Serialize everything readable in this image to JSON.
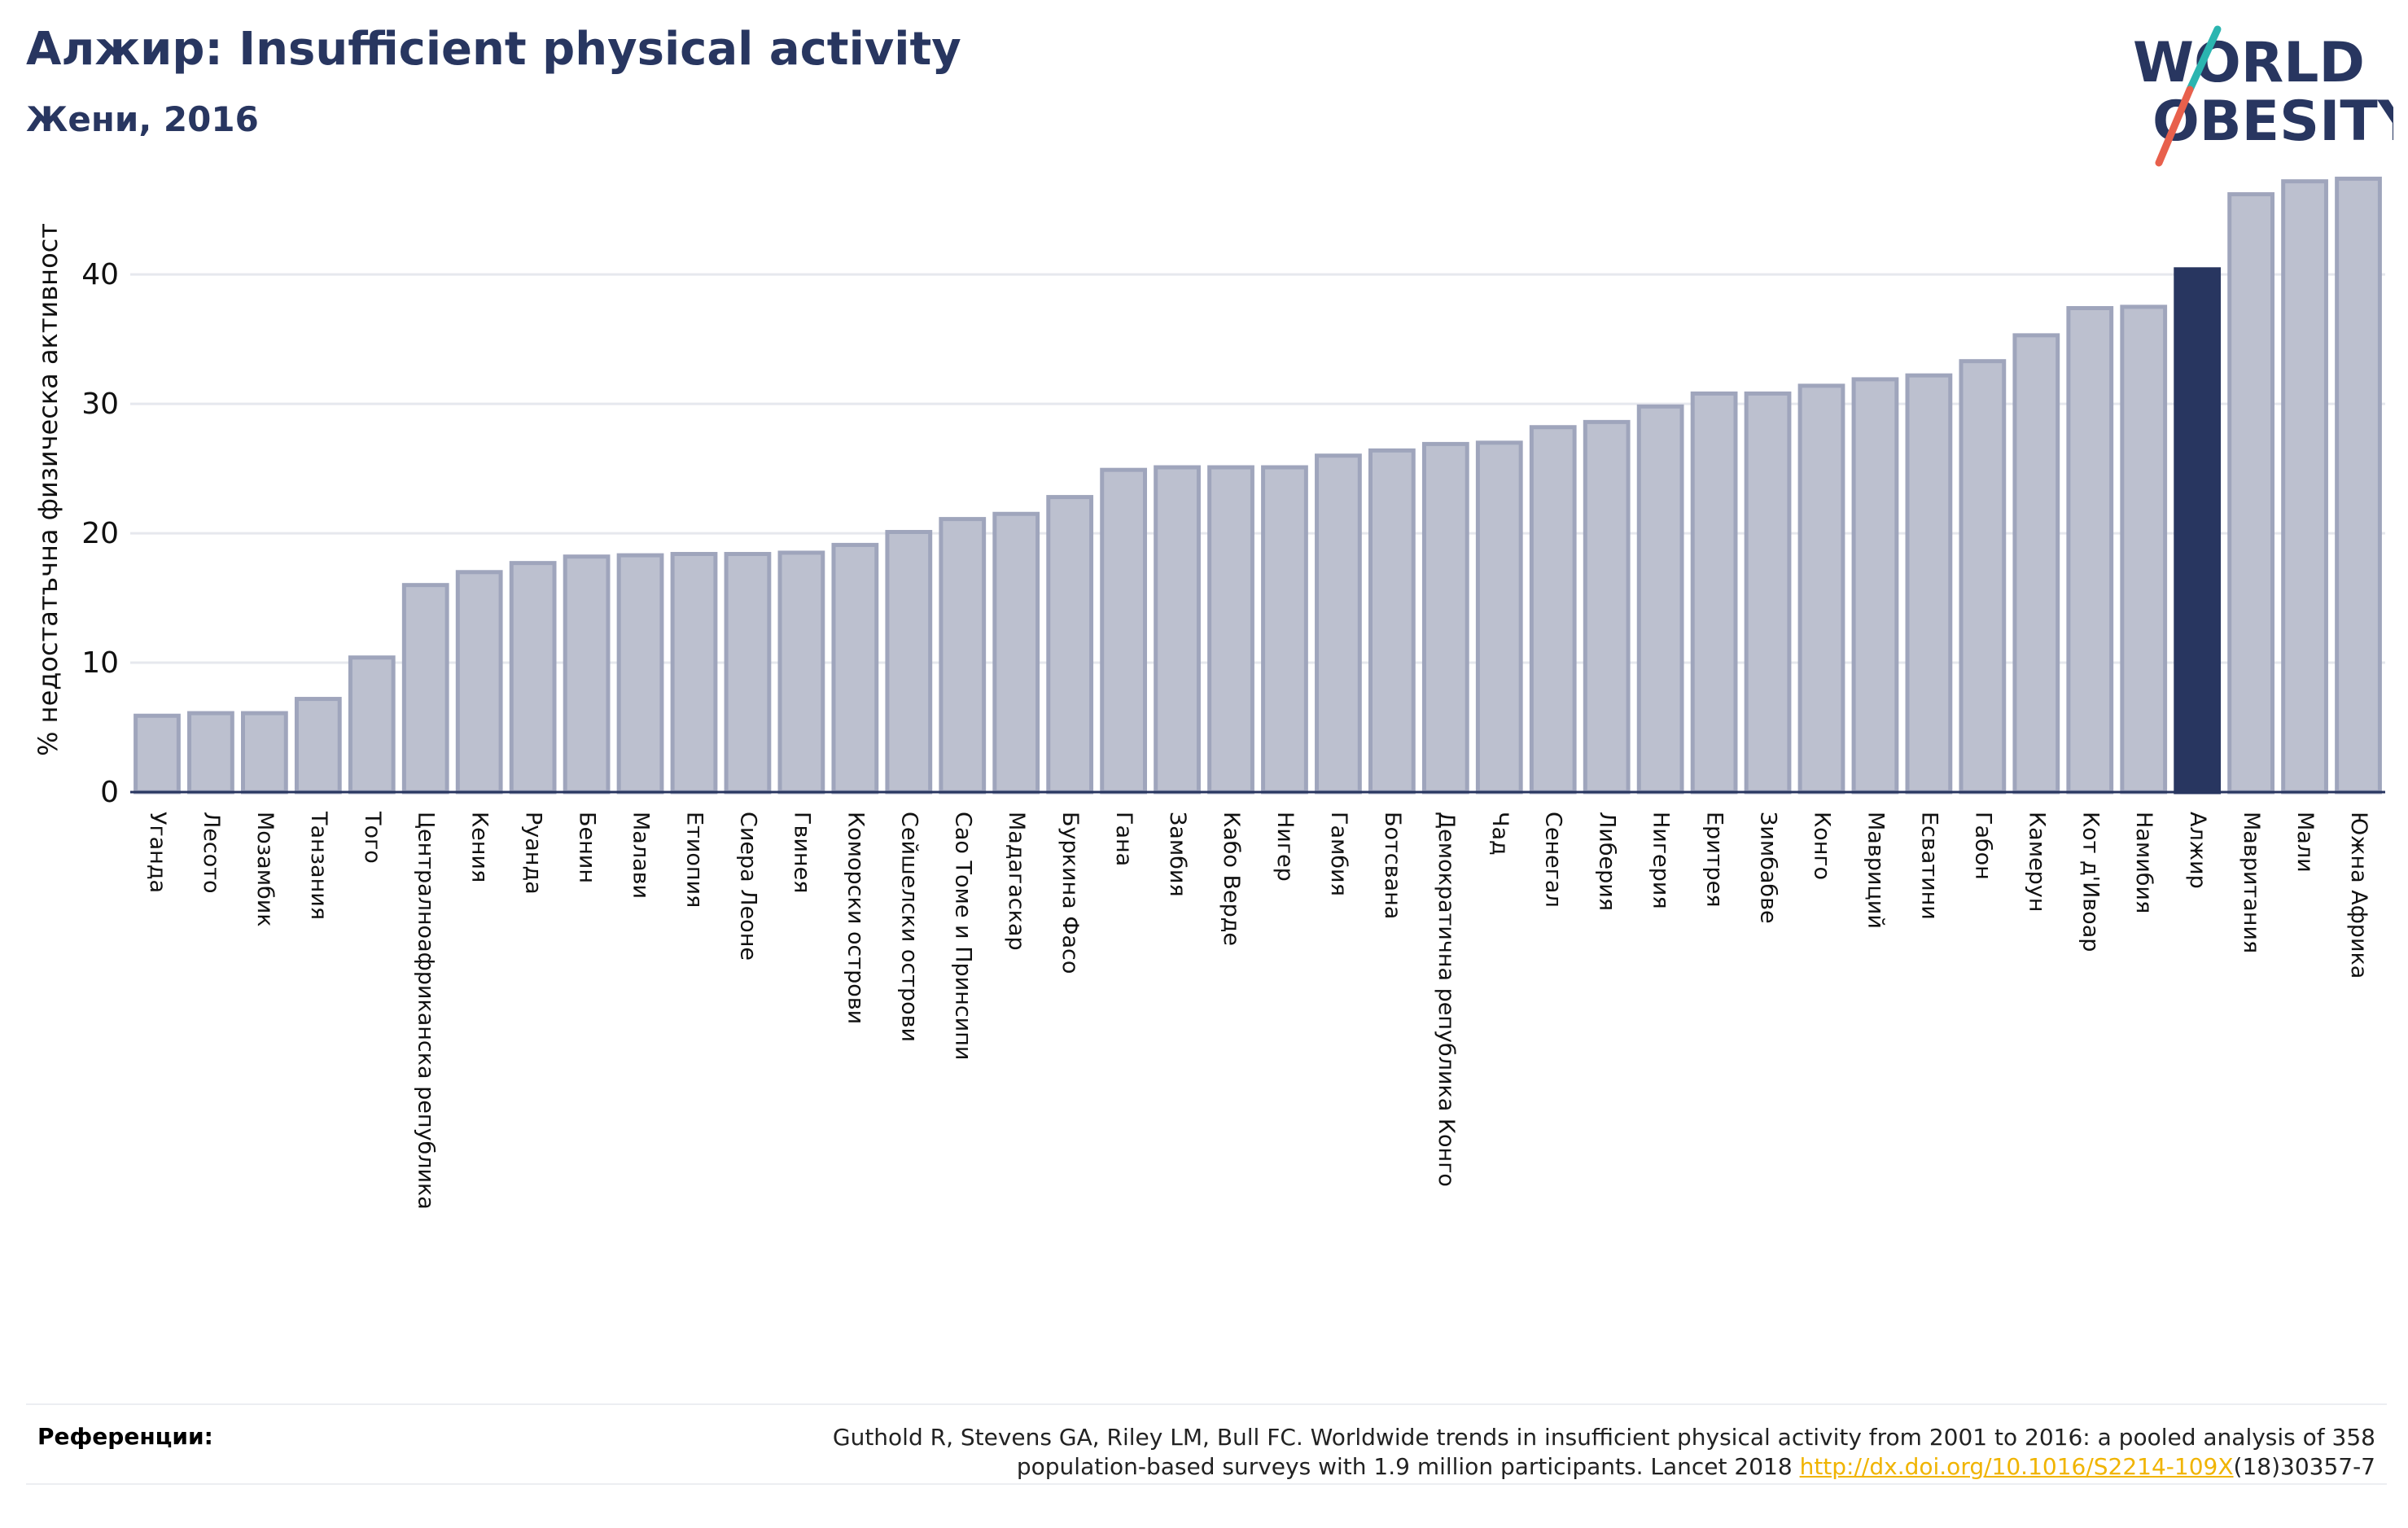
{
  "header": {
    "title": "Алжир: Insufficient physical activity",
    "subtitle": "Жени, 2016"
  },
  "logo": {
    "line1": "WORLD",
    "line2": "OBESITY",
    "color_text": "#283660",
    "color_slash_top": "#2bb5b0",
    "color_slash_bottom": "#e8604c"
  },
  "chart_data": {
    "type": "bar",
    "ylabel": "% недостатъчна физическа активност",
    "ylim": [
      0,
      48
    ],
    "yticks": [
      0,
      10,
      20,
      30,
      40
    ],
    "grid": true,
    "highlight": "Алжир",
    "bar_color": "#bcc0cf",
    "bar_edge_color": "#9fa5bc",
    "highlight_color": "#283660",
    "categories": [
      "Уганда",
      "Лесото",
      "Мозамбик",
      "Танзания",
      "Того",
      "Централноафриканска република",
      "Кения",
      "Руанда",
      "Бенин",
      "Малави",
      "Етиопия",
      "Сиера Леоне",
      "Гвинея",
      "Коморски острови",
      "Сейшелски острови",
      "Сао Томе и Принсипи",
      "Мадагаскар",
      "Буркина Фасо",
      "Гана",
      "Замбия",
      "Кабо Верде",
      "Нигер",
      "Гамбия",
      "Ботсвана",
      "Демократична република Конго",
      "Чад",
      "Сенегал",
      "Либерия",
      "Нигерия",
      "Еритрея",
      "Зимбабве",
      "Конго",
      "Мавриций",
      "Есватини",
      "Габон",
      "Камерун",
      "Кот д'Ивоар",
      "Намибия",
      "Алжир",
      "Мавритания",
      "Мали",
      "Южна Африка"
    ],
    "values": [
      5.9,
      6.1,
      6.1,
      7.2,
      10.4,
      16.0,
      17.0,
      17.7,
      18.2,
      18.3,
      18.4,
      18.4,
      18.5,
      19.1,
      20.1,
      21.1,
      21.5,
      22.8,
      24.9,
      25.1,
      25.1,
      25.1,
      26.0,
      26.4,
      26.9,
      27.0,
      28.2,
      28.6,
      29.8,
      30.8,
      30.8,
      31.4,
      31.9,
      32.2,
      33.3,
      35.3,
      37.4,
      37.5,
      40.4,
      46.2,
      47.2,
      47.4
    ]
  },
  "references": {
    "label": "Референции:",
    "line1": "Guthold R, Stevens GA, Riley LM, Bull FC. Worldwide trends in insufficient physical activity from 2001 to 2016: a pooled analysis of 358",
    "line2_prefix": "population-based surveys with 1.9 million participants. Lancet 2018 ",
    "link": "http://dx.doi.org/10.1016/S2214-109X",
    "line2_suffix": "(18)30357-7"
  }
}
